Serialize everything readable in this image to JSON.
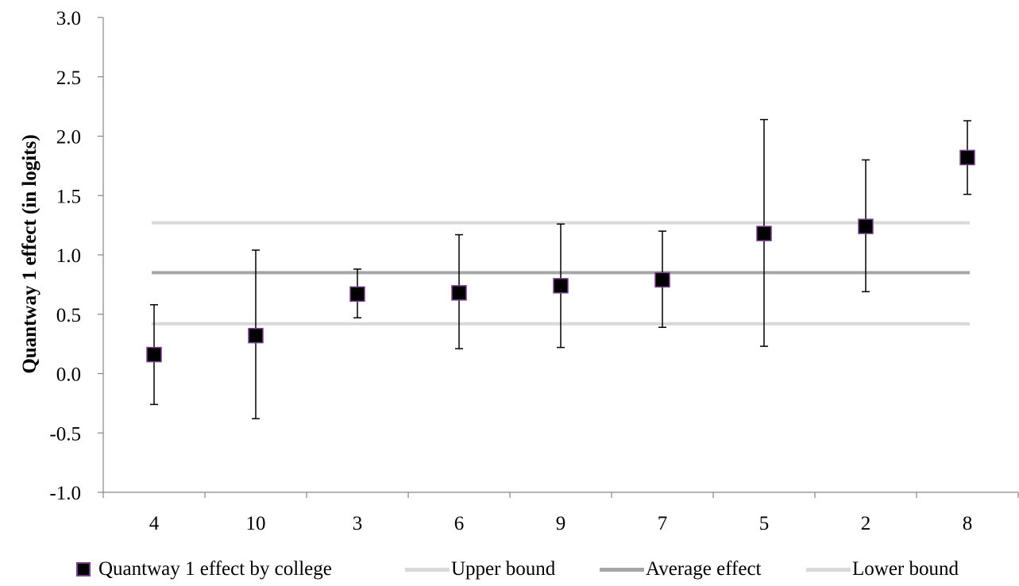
{
  "chart_data": {
    "type": "scatter",
    "title": "",
    "xlabel": "",
    "ylabel": "Quantway 1 effect (in logits)",
    "ylim": [
      -1.0,
      3.0
    ],
    "yticks": [
      "3.0",
      "2.5",
      "2.0",
      "1.5",
      "1.0",
      "0.5",
      "0.0",
      "-0.5",
      "-1.0"
    ],
    "yticks_values": [
      3.0,
      2.5,
      2.0,
      1.5,
      1.0,
      0.5,
      0.0,
      -0.5,
      -1.0
    ],
    "categories": [
      "4",
      "10",
      "3",
      "6",
      "9",
      "7",
      "5",
      "2",
      "8"
    ],
    "grid": false,
    "legend_position": "bottom",
    "series": [
      {
        "name": "Quantway 1 effect by college",
        "type": "scatter",
        "marker": "square",
        "color": "#000000",
        "edge_color": "#7b3f8f",
        "values": [
          0.16,
          0.32,
          0.67,
          0.68,
          0.74,
          0.79,
          1.18,
          1.24,
          1.82
        ],
        "error_low": [
          -0.26,
          -0.38,
          0.47,
          0.21,
          0.22,
          0.39,
          0.23,
          0.69,
          1.51
        ],
        "error_high": [
          0.58,
          1.04,
          0.88,
          1.17,
          1.26,
          1.2,
          2.14,
          1.8,
          2.13
        ]
      },
      {
        "name": "Upper bound",
        "type": "line",
        "color": "#d9d9d9",
        "value": 1.27
      },
      {
        "name": "Average effect",
        "type": "line",
        "color": "#a6a6a6",
        "value": 0.85
      },
      {
        "name": "Lower bound",
        "type": "line",
        "color": "#d9d9d9",
        "value": 0.42
      }
    ]
  }
}
